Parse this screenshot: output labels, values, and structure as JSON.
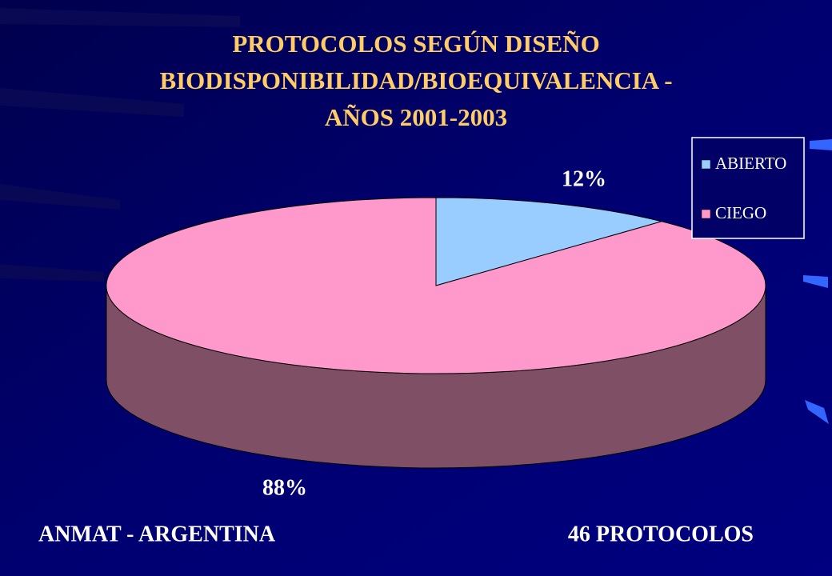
{
  "chart_data": {
    "type": "pie3d",
    "title": [
      "PROTOCOLOS SEGÚN DISEÑO",
      "BIODISPONIBILIDAD/BIOEQUIVALENCIA -",
      "AÑOS 2001-2003"
    ],
    "categories": [
      "ABIERTO",
      "CIEGO"
    ],
    "values": [
      12,
      88
    ],
    "value_labels": [
      "12%",
      "88%"
    ],
    "colors": [
      "#99ccff",
      "#ff99cc"
    ],
    "side_colors": [
      "#5c7a99",
      "#7f4f66"
    ],
    "legend": "top-right",
    "annotations": [
      "ANMAT - ARGENTINA",
      "46 PROTOCOLOS"
    ]
  }
}
